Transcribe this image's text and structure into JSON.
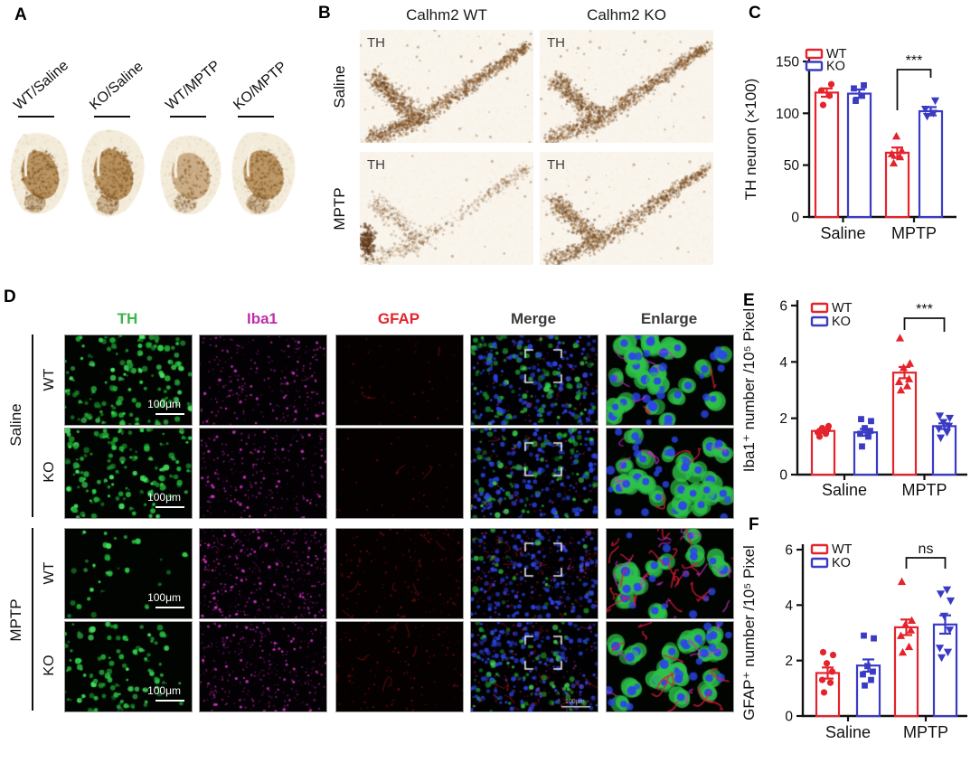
{
  "colors": {
    "wt_red": "#e4242c",
    "ko_blue": "#3a3bc4",
    "th_green": "#3cb54a",
    "iba1_magenta": "#bb2fa8",
    "gfap_red": "#e4242c",
    "merge_gray": "#3a3a3a"
  },
  "panelA": {
    "label": "A",
    "items": [
      {
        "label": "WT/Saline"
      },
      {
        "label": "KO/Saline"
      },
      {
        "label": "WT/MPTP"
      },
      {
        "label": "KO/MPTP"
      }
    ]
  },
  "panelB": {
    "label": "B",
    "column_titles": [
      "Calhm2 WT",
      "Calhm2 KO"
    ],
    "row_labels": [
      "Saline",
      "MPTP"
    ],
    "stain_tag": "TH"
  },
  "panelD": {
    "label": "D",
    "column_headers": [
      {
        "label": "TH",
        "color": "#3cb54a"
      },
      {
        "label": "Iba1",
        "color": "#bb2fa8"
      },
      {
        "label": "GFAP",
        "color": "#e4242c"
      },
      {
        "label": "Merge",
        "color": "#3a3a3a"
      },
      {
        "label": "Enlarge",
        "color": "#3a3a3a"
      }
    ],
    "groups": [
      {
        "label": "Saline",
        "rows": [
          "WT",
          "KO"
        ]
      },
      {
        "label": "MPTP",
        "rows": [
          "WT",
          "KO"
        ]
      }
    ],
    "scale_bar_label": "100μm"
  },
  "chart_data": [
    {
      "panel": "C",
      "type": "bar",
      "ylabel": "TH neuron (×100)",
      "ylim": [
        0,
        150
      ],
      "yticks": [
        0,
        50,
        100,
        150
      ],
      "categories": [
        "Saline",
        "MPTP"
      ],
      "legend": [
        "WT",
        "KO"
      ],
      "legend_position": "top-left",
      "series": [
        {
          "name": "WT",
          "color": "#e4242c",
          "means": [
            120,
            62
          ],
          "sem": [
            4,
            5
          ],
          "points": [
            [
              108,
              117,
              122,
              128
            ],
            [
              52,
              58,
              61,
              64,
              78
            ]
          ],
          "markers": [
            "circle",
            "triangle-up"
          ]
        },
        {
          "name": "KO",
          "color": "#3a3bc4",
          "means": [
            119,
            102
          ],
          "sem": [
            4,
            4
          ],
          "points": [
            [
              112,
              117,
              124,
              127
            ],
            [
              97,
              100,
              104,
              112
            ]
          ],
          "markers": [
            "square",
            "triangle-down"
          ]
        }
      ],
      "significance": {
        "label": "***",
        "category_index": 1
      }
    },
    {
      "panel": "E",
      "type": "bar",
      "ylabel": "Iba1⁺ number /10⁵ Pixel",
      "ylim": [
        0,
        6
      ],
      "yticks": [
        0,
        2,
        4,
        6
      ],
      "categories": [
        "Saline",
        "MPTP"
      ],
      "legend": [
        "WT",
        "KO"
      ],
      "legend_position": "top-left",
      "series": [
        {
          "name": "WT",
          "color": "#e4242c",
          "means": [
            1.55,
            3.62
          ],
          "sem": [
            0.07,
            0.2
          ],
          "points": [
            [
              1.35,
              1.45,
              1.5,
              1.6,
              1.65,
              1.72
            ],
            [
              3.0,
              3.15,
              3.3,
              3.4,
              3.8,
              3.95,
              4.85
            ]
          ],
          "markers": [
            "circle",
            "triangle-up"
          ]
        },
        {
          "name": "KO",
          "color": "#3a3bc4",
          "means": [
            1.5,
            1.72
          ],
          "sem": [
            0.12,
            0.1
          ],
          "points": [
            [
              1.0,
              1.35,
              1.45,
              1.55,
              1.65,
              1.9,
              1.97
            ],
            [
              1.3,
              1.5,
              1.62,
              1.72,
              1.85,
              2.0,
              2.08
            ]
          ],
          "markers": [
            "square",
            "triangle-down"
          ]
        }
      ],
      "significance": {
        "label": "***",
        "category_index": 1
      }
    },
    {
      "panel": "F",
      "type": "bar",
      "ylabel": "GFAP⁺ number /10⁵ Pixel",
      "ylim": [
        0,
        6
      ],
      "yticks": [
        0,
        2,
        4,
        6
      ],
      "categories": [
        "Saline",
        "MPTP"
      ],
      "legend": [
        "WT",
        "KO"
      ],
      "legend_position": "top-left",
      "series": [
        {
          "name": "WT",
          "color": "#e4242c",
          "means": [
            1.55,
            3.2
          ],
          "sem": [
            0.2,
            0.28
          ],
          "points": [
            [
              0.85,
              1.2,
              1.3,
              1.6,
              1.9,
              2.2,
              2.3
            ],
            [
              2.3,
              2.5,
              2.9,
              3.1,
              3.3,
              3.45,
              4.85
            ]
          ],
          "markers": [
            "circle",
            "triangle-up"
          ]
        },
        {
          "name": "KO",
          "color": "#3a3bc4",
          "means": [
            1.82,
            3.3
          ],
          "sem": [
            0.22,
            0.33
          ],
          "points": [
            [
              1.1,
              1.3,
              1.5,
              1.6,
              1.8,
              2.8,
              2.9
            ],
            [
              2.1,
              2.3,
              2.45,
              3.1,
              3.6,
              4.15,
              4.4,
              4.55
            ]
          ],
          "markers": [
            "square",
            "triangle-down"
          ]
        }
      ],
      "significance": {
        "label": "ns",
        "category_index": 1
      }
    }
  ]
}
